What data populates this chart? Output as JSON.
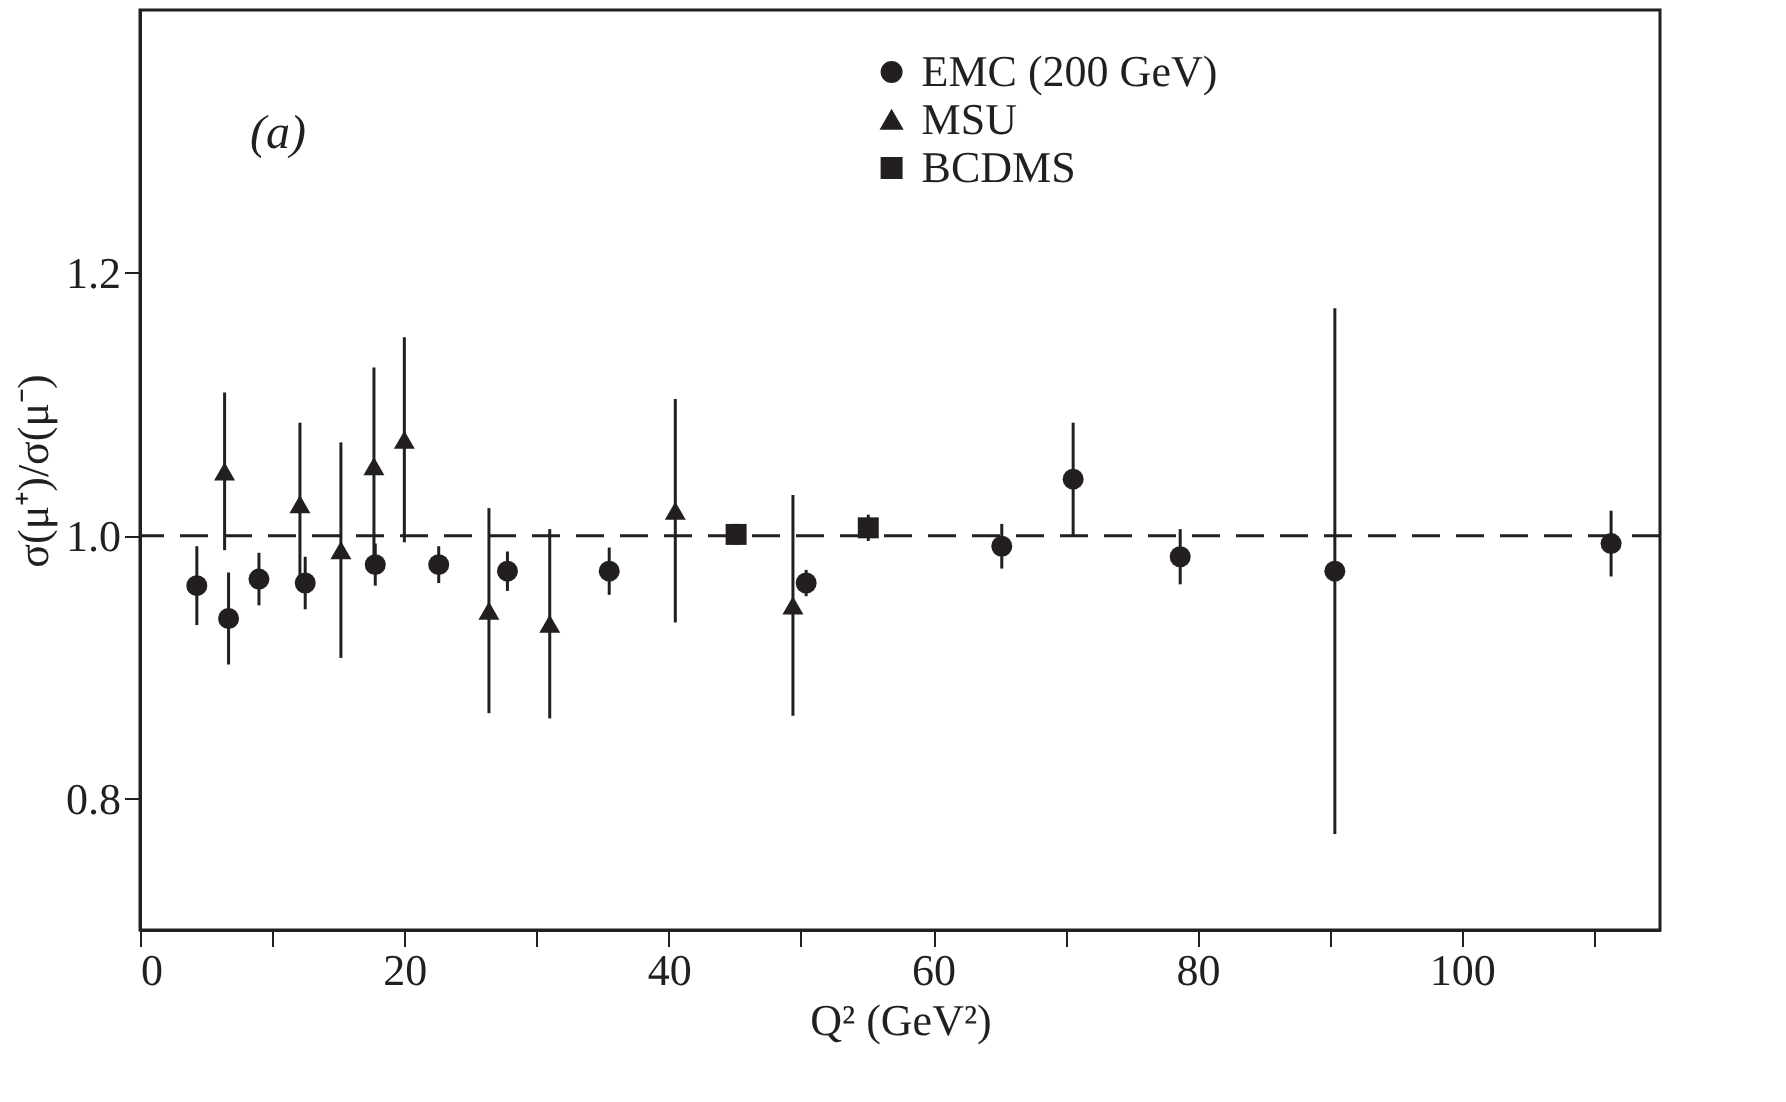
{
  "chart_data": {
    "type": "scatter",
    "xlabel": "Q² (GeV²)",
    "ylabel": "σ(μ⁺)/σ(μ⁻)",
    "annotations": [
      "(a)"
    ],
    "xlim": [
      0,
      115
    ],
    "ylim": [
      0.7,
      1.4
    ],
    "xticks": [
      0,
      {
        "value": 10,
        "label": null
      },
      20,
      {
        "value": 30,
        "label": null
      },
      40,
      {
        "value": 50,
        "label": null
      },
      60,
      {
        "value": 70,
        "label": null
      },
      80,
      {
        "value": 90,
        "label": null
      },
      100,
      {
        "value": 110,
        "label": null
      }
    ],
    "yticks": [
      0.8,
      {
        "value": 1.0,
        "label": "1.0"
      },
      1.2
    ],
    "grid": false,
    "legend": "top",
    "ref_lines": [
      {
        "axis": "y",
        "value": 1.0,
        "label": null,
        "color": "#231f20",
        "line_style": "dashed"
      }
    ],
    "series": [
      {
        "name": "EMC (200 GeV)",
        "color": "#231f20",
        "marker": "circle",
        "x": [
          4.3,
          6.7,
          9.0,
          12.5,
          17.8,
          22.6,
          27.8,
          35.5,
          50.4,
          65.2,
          70.6,
          78.7,
          90.4,
          111.3
        ],
        "values": [
          0.962,
          0.937,
          0.967,
          0.964,
          0.978,
          0.978,
          0.973,
          0.973,
          0.964,
          0.992,
          1.043,
          0.984,
          0.973,
          0.994
        ],
        "errors": [
          0.03,
          0.035,
          0.02,
          0.02,
          0.016,
          0.014,
          0.015,
          0.018,
          0.01,
          0.017,
          0.043,
          0.021,
          0.2,
          0.025
        ]
      },
      {
        "name": "MSU",
        "color": "#231f20",
        "marker": "triangle",
        "x": [
          6.4,
          12.1,
          15.2,
          17.7,
          20.0,
          26.4,
          31.0,
          40.5,
          49.4
        ],
        "values": [
          1.049,
          1.024,
          0.989,
          1.053,
          1.073,
          0.943,
          0.933,
          1.019,
          0.947
        ],
        "errors": [
          0.06,
          0.062,
          0.082,
          0.075,
          0.078,
          0.078,
          0.072,
          0.085,
          0.084
        ]
      },
      {
        "name": "BCDMS",
        "color": "#231f20",
        "marker": "square",
        "x": [
          45.1,
          55.1
        ],
        "values": [
          1.001,
          1.006
        ],
        "errors": [
          0.008,
          0.01
        ]
      }
    ]
  }
}
